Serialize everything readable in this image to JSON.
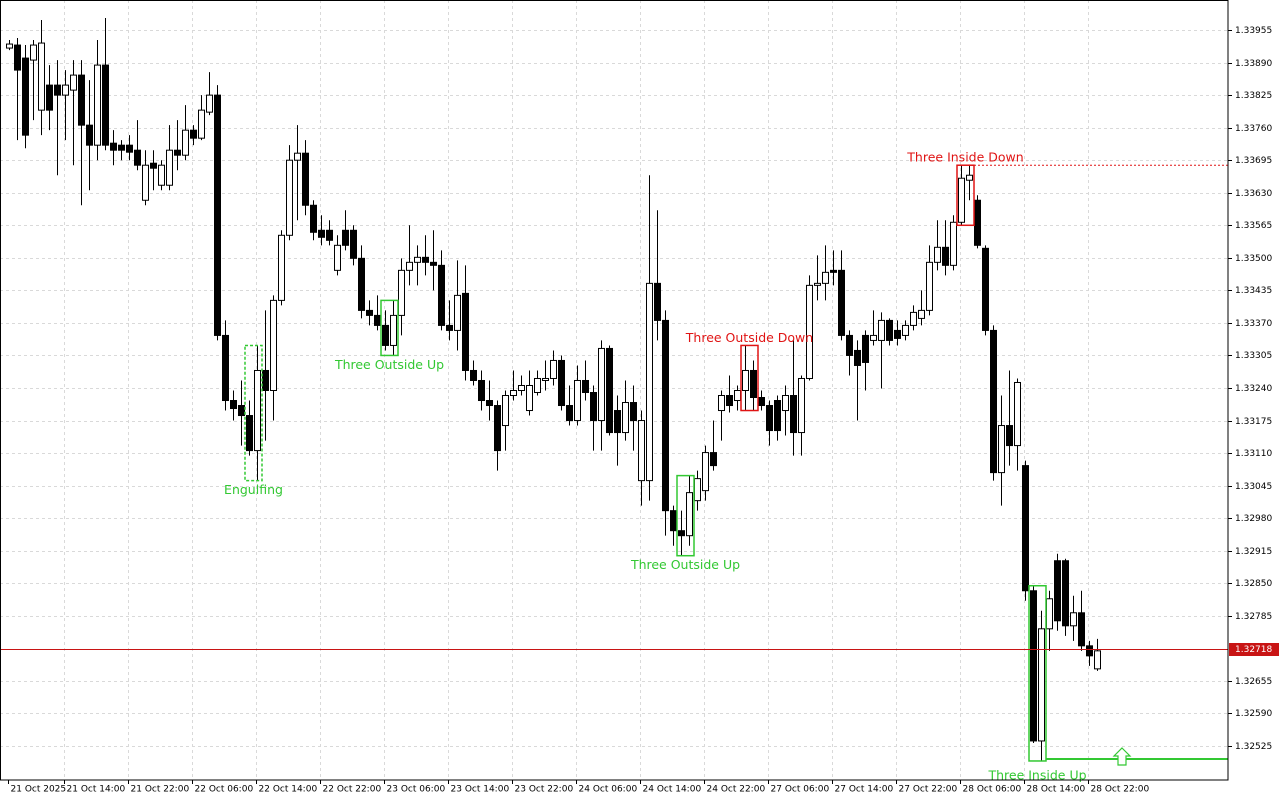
{
  "chart_data": {
    "type": "candlestick",
    "categories": [
      "21 Oct 2025",
      null,
      null,
      null,
      null,
      null,
      null,
      "21 Oct 14:00",
      null,
      null,
      null,
      null,
      null,
      null,
      null,
      "21 Oct 22:00",
      null,
      null,
      null,
      null,
      null,
      null,
      null,
      "22 Oct 06:00",
      null,
      null,
      null,
      null,
      null,
      null,
      null,
      "22 Oct 14:00",
      null,
      null,
      null,
      null,
      null,
      null,
      null,
      "22 Oct 22:00",
      null,
      null,
      null,
      null,
      null,
      null,
      null,
      "23 Oct 06:00",
      null,
      null,
      null,
      null,
      null,
      null,
      null,
      "23 Oct 14:00",
      null,
      null,
      null,
      null,
      null,
      null,
      null,
      "23 Oct 22:00",
      null,
      null,
      null,
      null,
      null,
      null,
      null,
      "24 Oct 06:00",
      null,
      null,
      null,
      null,
      null,
      null,
      null,
      "24 Oct 14:00",
      null,
      null,
      null,
      null,
      null,
      null,
      null,
      "24 Oct 22:00",
      null,
      null,
      null,
      null,
      null,
      null,
      null,
      "27 Oct 06:00",
      null,
      null,
      null,
      null,
      null,
      null,
      null,
      "27 Oct 14:00",
      null,
      null,
      null,
      null,
      null,
      null,
      null,
      "27 Oct 22:00",
      null,
      null,
      null,
      null,
      null,
      null,
      null,
      "28 Oct 06:00",
      null,
      null,
      null,
      null,
      null,
      null,
      null,
      "28 Oct 14:00",
      null,
      null,
      null,
      null,
      null,
      null,
      null,
      "28 Oct 22:00",
      null
    ],
    "open": [
      1.33919,
      1.33925,
      1.33899,
      1.33895,
      1.33795,
      1.33845,
      1.33845,
      1.33825,
      1.33835,
      1.33865,
      1.33765,
      1.33725,
      1.33885,
      1.33729,
      1.33725,
      1.33725,
      1.33715,
      1.33615,
      1.33689,
      1.33645,
      1.33645,
      1.33715,
      1.33705,
      1.33755,
      1.33739,
      1.33791,
      1.33825,
      1.33345,
      1.33215,
      1.33205,
      1.33185,
      1.33115,
      1.33275,
      1.33235,
      1.33415,
      1.33545,
      1.33695,
      1.33709,
      1.33605,
      1.33555,
      1.33555,
      1.33475,
      1.33555,
      1.33555,
      1.33499,
      1.33395,
      1.33385,
      1.33365,
      1.33325,
      1.33385,
      1.33475,
      1.33491,
      1.33501,
      1.33491,
      1.33485,
      1.33365,
      1.33355,
      1.33429,
      1.33275,
      1.33255,
      1.33215,
      1.33205,
      1.33165,
      1.33225,
      1.33235,
      1.33195,
      1.33231,
      1.33255,
      1.33259,
      1.33295,
      1.33205,
      1.33175,
      1.33255,
      1.33231,
      1.33175,
      1.33319,
      1.33195,
      1.33151,
      1.33211,
      1.33055,
      1.33055,
      1.33449,
      1.33375,
      1.32995,
      1.32955,
      1.32945,
      1.33015,
      1.33035,
      1.33111,
      1.33195,
      1.33225,
      1.33215,
      1.33235,
      1.33275,
      1.33221,
      1.33205,
      1.33215,
      1.33195,
      1.33225,
      1.33151,
      1.33259,
      1.33445,
      1.33449,
      1.33475,
      1.33475,
      1.33345,
      1.33315,
      1.33345,
      1.33335,
      1.33335,
      1.33375,
      1.33355,
      1.33345,
      1.33365,
      1.33379,
      1.33395,
      1.33491,
      1.33521,
      1.33485,
      1.33571,
      1.33655,
      1.33615,
      1.33519,
      1.33355,
      1.33071,
      1.33165,
      1.33125,
      1.33085,
      1.32835,
      1.32535,
      1.32759,
      1.32895,
      1.32895,
      1.32765,
      1.32791,
      1.32725,
      1.32679
    ],
    "high": [
      1.33935,
      1.33939,
      1.33925,
      1.33935,
      1.33975,
      1.33885,
      1.33895,
      1.33875,
      1.33895,
      1.33895,
      1.33855,
      1.33935,
      1.33979,
      1.33755,
      1.33735,
      1.33745,
      1.33775,
      1.33715,
      1.33715,
      1.33695,
      1.33765,
      1.33775,
      1.33805,
      1.33765,
      1.33825,
      1.33871,
      1.33845,
      1.33375,
      1.33235,
      1.33255,
      1.33215,
      1.33325,
      1.33395,
      1.33425,
      1.33555,
      1.33725,
      1.33765,
      1.33735,
      1.33615,
      1.33585,
      1.33575,
      1.33545,
      1.33595,
      1.33565,
      1.33525,
      1.33415,
      1.33425,
      1.33395,
      1.33415,
      1.33499,
      1.33565,
      1.33525,
      1.33545,
      1.33555,
      1.33515,
      1.33415,
      1.33495,
      1.33485,
      1.33295,
      1.33275,
      1.33255,
      1.33215,
      1.33235,
      1.33275,
      1.33265,
      1.33275,
      1.33275,
      1.33295,
      1.33315,
      1.33305,
      1.33245,
      1.33285,
      1.33295,
      1.33245,
      1.33335,
      1.33325,
      1.33225,
      1.33255,
      1.33245,
      1.33195,
      1.33665,
      1.33595,
      1.33395,
      1.33005,
      1.32995,
      1.33065,
      1.33075,
      1.33125,
      1.33175,
      1.33235,
      1.33265,
      1.33245,
      1.33325,
      1.33295,
      1.33235,
      1.33215,
      1.33225,
      1.33245,
      1.33335,
      1.33265,
      1.33465,
      1.33505,
      1.33525,
      1.33515,
      1.33515,
      1.33355,
      1.33335,
      1.33355,
      1.33395,
      1.33391,
      1.33379,
      1.33375,
      1.33375,
      1.33405,
      1.33435,
      1.33525,
      1.33575,
      1.33575,
      1.33585,
      1.33685,
      1.33685,
      1.33625,
      1.33525,
      1.33365,
      1.33225,
      1.33275,
      1.33259,
      1.33095,
      1.32845,
      1.32795,
      1.32835,
      1.32909,
      1.32899,
      1.32825,
      1.32835,
      1.32735,
      1.32739
    ],
    "low": [
      1.33915,
      1.33735,
      1.33719,
      1.33775,
      1.33745,
      1.33755,
      1.33665,
      1.33735,
      1.33685,
      1.33605,
      1.33635,
      1.33695,
      1.33715,
      1.33685,
      1.33695,
      1.33695,
      1.33675,
      1.33605,
      1.33635,
      1.33635,
      1.33635,
      1.33675,
      1.33695,
      1.33725,
      1.33735,
      1.33785,
      1.33335,
      1.33195,
      1.33175,
      1.33125,
      1.33105,
      1.33055,
      1.33135,
      1.33175,
      1.33405,
      1.33535,
      1.33575,
      1.33585,
      1.33535,
      1.33525,
      1.33525,
      1.33465,
      1.33515,
      1.33485,
      1.33379,
      1.33365,
      1.33355,
      1.33315,
      1.33305,
      1.33345,
      1.33445,
      1.33445,
      1.33465,
      1.33435,
      1.33355,
      1.33335,
      1.33315,
      1.33255,
      1.33245,
      1.33195,
      1.33175,
      1.33075,
      1.33115,
      1.33215,
      1.33225,
      1.33185,
      1.33225,
      1.33235,
      1.33245,
      1.33195,
      1.33165,
      1.33165,
      1.33215,
      1.33115,
      1.33115,
      1.33145,
      1.33085,
      1.33135,
      1.33115,
      1.33005,
      1.33015,
      1.33335,
      1.32945,
      1.32925,
      1.32905,
      1.32925,
      1.32995,
      1.33015,
      1.33075,
      1.33135,
      1.33191,
      1.33195,
      1.33195,
      1.33195,
      1.33195,
      1.33125,
      1.33135,
      1.33145,
      1.33105,
      1.33105,
      1.33255,
      1.33415,
      1.33415,
      1.33445,
      1.33335,
      1.33265,
      1.33175,
      1.33235,
      1.33325,
      1.33239,
      1.33325,
      1.33325,
      1.33335,
      1.33355,
      1.33365,
      1.33385,
      1.33475,
      1.33465,
      1.33475,
      1.33565,
      1.33615,
      1.33519,
      1.33345,
      1.33055,
      1.33005,
      1.33085,
      1.33075,
      1.32815,
      1.32531,
      1.32495,
      1.32715,
      1.32755,
      1.32745,
      1.32735,
      1.32715,
      1.32685,
      1.32675
    ],
    "close": [
      1.33927,
      1.33875,
      1.33745,
      1.33925,
      1.33929,
      1.33795,
      1.33825,
      1.33845,
      1.33865,
      1.33765,
      1.33725,
      1.33885,
      1.33725,
      1.33715,
      1.33715,
      1.33711,
      1.33685,
      1.33685,
      1.33679,
      1.33685,
      1.33715,
      1.33705,
      1.33755,
      1.33739,
      1.33795,
      1.33825,
      1.33345,
      1.33215,
      1.33199,
      1.33185,
      1.33115,
      1.33275,
      1.33235,
      1.33415,
      1.33545,
      1.33695,
      1.33709,
      1.33605,
      1.33551,
      1.33541,
      1.33535,
      1.33525,
      1.33525,
      1.33499,
      1.33395,
      1.33385,
      1.33365,
      1.33325,
      1.33385,
      1.33475,
      1.33491,
      1.33501,
      1.33491,
      1.33485,
      1.33365,
      1.33355,
      1.33425,
      1.33275,
      1.33255,
      1.33215,
      1.33205,
      1.33115,
      1.33225,
      1.33235,
      1.33245,
      1.33245,
      1.33259,
      1.33259,
      1.33295,
      1.33205,
      1.33175,
      1.33255,
      1.33231,
      1.33175,
      1.33319,
      1.33151,
      1.33151,
      1.33211,
      1.33175,
      1.33175,
      1.33449,
      1.33375,
      1.32995,
      1.32955,
      1.32945,
      1.33031,
      1.33059,
      1.33111,
      1.33085,
      1.33225,
      1.33205,
      1.33235,
      1.33275,
      1.33221,
      1.33205,
      1.33155,
      1.33155,
      1.33225,
      1.33151,
      1.33259,
      1.33445,
      1.33449,
      1.33471,
      1.33471,
      1.33345,
      1.33305,
      1.33285,
      1.33291,
      1.33345,
      1.33375,
      1.33335,
      1.33339,
      1.33365,
      1.33391,
      1.33395,
      1.33491,
      1.33521,
      1.33485,
      1.33571,
      1.33659,
      1.33665,
      1.33525,
      1.33355,
      1.33071,
      1.33165,
      1.33125,
      1.33251,
      1.32835,
      1.32535,
      1.32759,
      1.32819,
      1.32775,
      1.32765,
      1.32791,
      1.32725,
      1.32705,
      1.32715
    ],
    "ylim": [
      1.32457,
      1.34015
    ],
    "yticks": [
      1.33955,
      {
        "value": 1.3389,
        "label": "1.33890"
      },
      1.33825,
      {
        "value": 1.3376,
        "label": "1.33760"
      },
      1.33695,
      {
        "value": 1.3363,
        "label": "1.33630"
      },
      1.33565,
      {
        "value": 1.335,
        "label": "1.33500"
      },
      1.33435,
      {
        "value": 1.3337,
        "label": "1.33370"
      },
      1.33305,
      {
        "value": 1.3324,
        "label": "1.33240"
      },
      1.33175,
      {
        "value": 1.3311,
        "label": "1.33110"
      },
      1.33045,
      {
        "value": 1.3298,
        "label": "1.32980"
      },
      1.32915,
      {
        "value": 1.3285,
        "label": "1.32850"
      },
      1.32785,
      1.32655,
      {
        "value": 1.3259,
        "label": "1.32590"
      },
      1.32525
    ],
    "current_price": 1.32718,
    "current_price_color": "#c81414",
    "grid": true,
    "bull_color": "#ffffff",
    "bear_color": "#000000",
    "patterns": [
      {
        "name": "Engulfing",
        "color": "#32c832"
      },
      {
        "name": "Three Outside Up",
        "color": "#32c832"
      },
      {
        "name": "Three Outside Up",
        "color": "#32c832"
      },
      {
        "name": "Three Outside Down",
        "color": "#e01414"
      },
      {
        "name": "Three Inside Down",
        "color": "#e01414"
      },
      {
        "name": "Three Inside Up",
        "color": "#32c832"
      }
    ]
  }
}
